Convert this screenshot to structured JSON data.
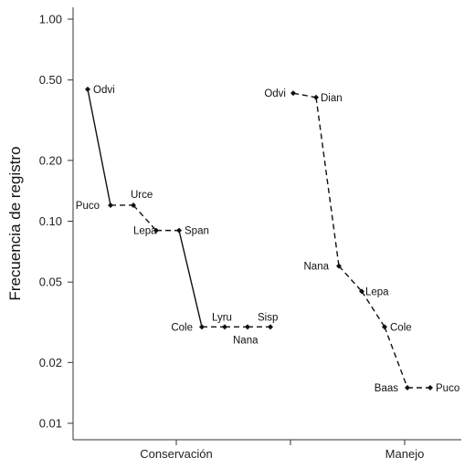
{
  "chart_data": {
    "type": "line",
    "ylabel": "Frecuencia de registro",
    "yscale": "log",
    "ylim": [
      0.0085,
      1.2
    ],
    "yticks": [
      {
        "value": 1.0,
        "label": "1.00"
      },
      {
        "value": 0.5,
        "label": "0.50"
      },
      {
        "value": 0.2,
        "label": "0.20"
      },
      {
        "value": 0.1,
        "label": "0.10"
      },
      {
        "value": 0.05,
        "label": "0.05"
      },
      {
        "value": 0.02,
        "label": "0.02"
      },
      {
        "value": 0.01,
        "label": "0.01"
      }
    ],
    "groups": [
      {
        "name": "Conservación",
        "points": [
          {
            "label": "Odvi",
            "rank": 1,
            "y": 0.45
          },
          {
            "label": "Puco",
            "rank": 2,
            "y": 0.12
          },
          {
            "label": "Urce",
            "rank": 3,
            "y": 0.12
          },
          {
            "label": "Lepa",
            "rank": 4,
            "y": 0.09
          },
          {
            "label": "Span",
            "rank": 5,
            "y": 0.09
          },
          {
            "label": "Cole",
            "rank": 6,
            "y": 0.03
          },
          {
            "label": "Lyru",
            "rank": 7,
            "y": 0.03
          },
          {
            "label": "Nana",
            "rank": 8,
            "y": 0.03
          },
          {
            "label": "Sisp",
            "rank": 9,
            "y": 0.03
          }
        ]
      },
      {
        "name": "Manejo",
        "points": [
          {
            "label": "Odvi",
            "rank": 1,
            "y": 0.43
          },
          {
            "label": "Dian",
            "rank": 2,
            "y": 0.41
          },
          {
            "label": "Nana",
            "rank": 3,
            "y": 0.06
          },
          {
            "label": "Lepa",
            "rank": 4,
            "y": 0.045
          },
          {
            "label": "Cole",
            "rank": 5,
            "y": 0.03
          },
          {
            "label": "Baas",
            "rank": 6,
            "y": 0.015
          },
          {
            "label": "Puco",
            "rank": 7,
            "y": 0.015
          }
        ]
      }
    ],
    "grid": false,
    "legend": "none"
  }
}
